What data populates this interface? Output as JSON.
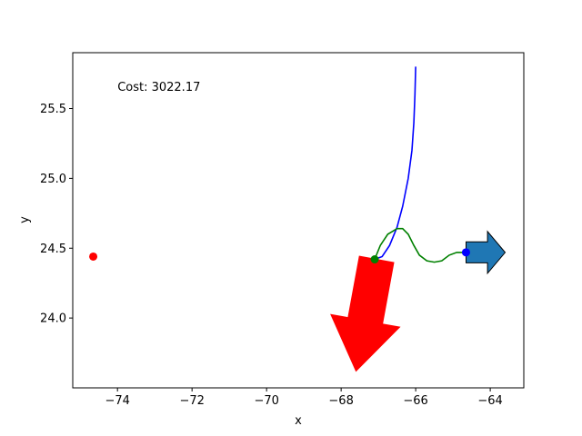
{
  "chart_data": {
    "type": "line",
    "xlabel": "x",
    "ylabel": "y",
    "xlim": [
      -75.2,
      -63.1
    ],
    "ylim": [
      23.5,
      25.9
    ],
    "xticks": [
      -74,
      -72,
      -70,
      -68,
      -66,
      -64
    ],
    "yticks": [
      24.0,
      24.5,
      25.0,
      25.5
    ],
    "xtick_labels": [
      "−74",
      "−72",
      "−70",
      "−68",
      "−66",
      "−64"
    ],
    "ytick_labels": [
      "24.0",
      "24.5",
      "25.0",
      "25.5"
    ],
    "grid": false,
    "annotation": {
      "text": "Cost: 3022.17",
      "x": -74.0,
      "y": 25.66
    },
    "series": [
      {
        "color": "#0000ff",
        "points": [
          [
            -67.1,
            24.42
          ],
          [
            -66.9,
            24.44
          ],
          [
            -66.7,
            24.52
          ],
          [
            -66.5,
            24.65
          ],
          [
            -66.35,
            24.8
          ],
          [
            -66.2,
            25.0
          ],
          [
            -66.1,
            25.2
          ],
          [
            -66.05,
            25.4
          ],
          [
            -66.02,
            25.6
          ],
          [
            -66.0,
            25.8
          ]
        ]
      },
      {
        "color": "#008000",
        "points": [
          [
            -67.1,
            24.42
          ],
          [
            -66.95,
            24.52
          ],
          [
            -66.75,
            24.6
          ],
          [
            -66.5,
            24.64
          ],
          [
            -66.35,
            24.64
          ],
          [
            -66.2,
            24.6
          ],
          [
            -66.05,
            24.52
          ],
          [
            -65.9,
            24.45
          ],
          [
            -65.7,
            24.41
          ],
          [
            -65.5,
            24.4
          ],
          [
            -65.3,
            24.41
          ],
          [
            -65.1,
            24.45
          ],
          [
            -64.9,
            24.47
          ],
          [
            -64.65,
            24.47
          ]
        ]
      }
    ],
    "markers": [
      {
        "x": -74.65,
        "y": 24.44,
        "color": "#ff0000"
      },
      {
        "x": -67.1,
        "y": 24.42,
        "color": "#008000"
      },
      {
        "x": -64.65,
        "y": 24.47,
        "color": "#0000ff"
      }
    ],
    "arrows": [
      {
        "from": [
          -67.05,
          24.42
        ],
        "to": [
          -67.6,
          23.62
        ],
        "color": "#ff0000",
        "width": 0.25
      },
      {
        "from": [
          -64.65,
          24.47
        ],
        "to": [
          -63.6,
          24.47
        ],
        "color": "#1f77b4",
        "width": 0.15
      }
    ]
  }
}
